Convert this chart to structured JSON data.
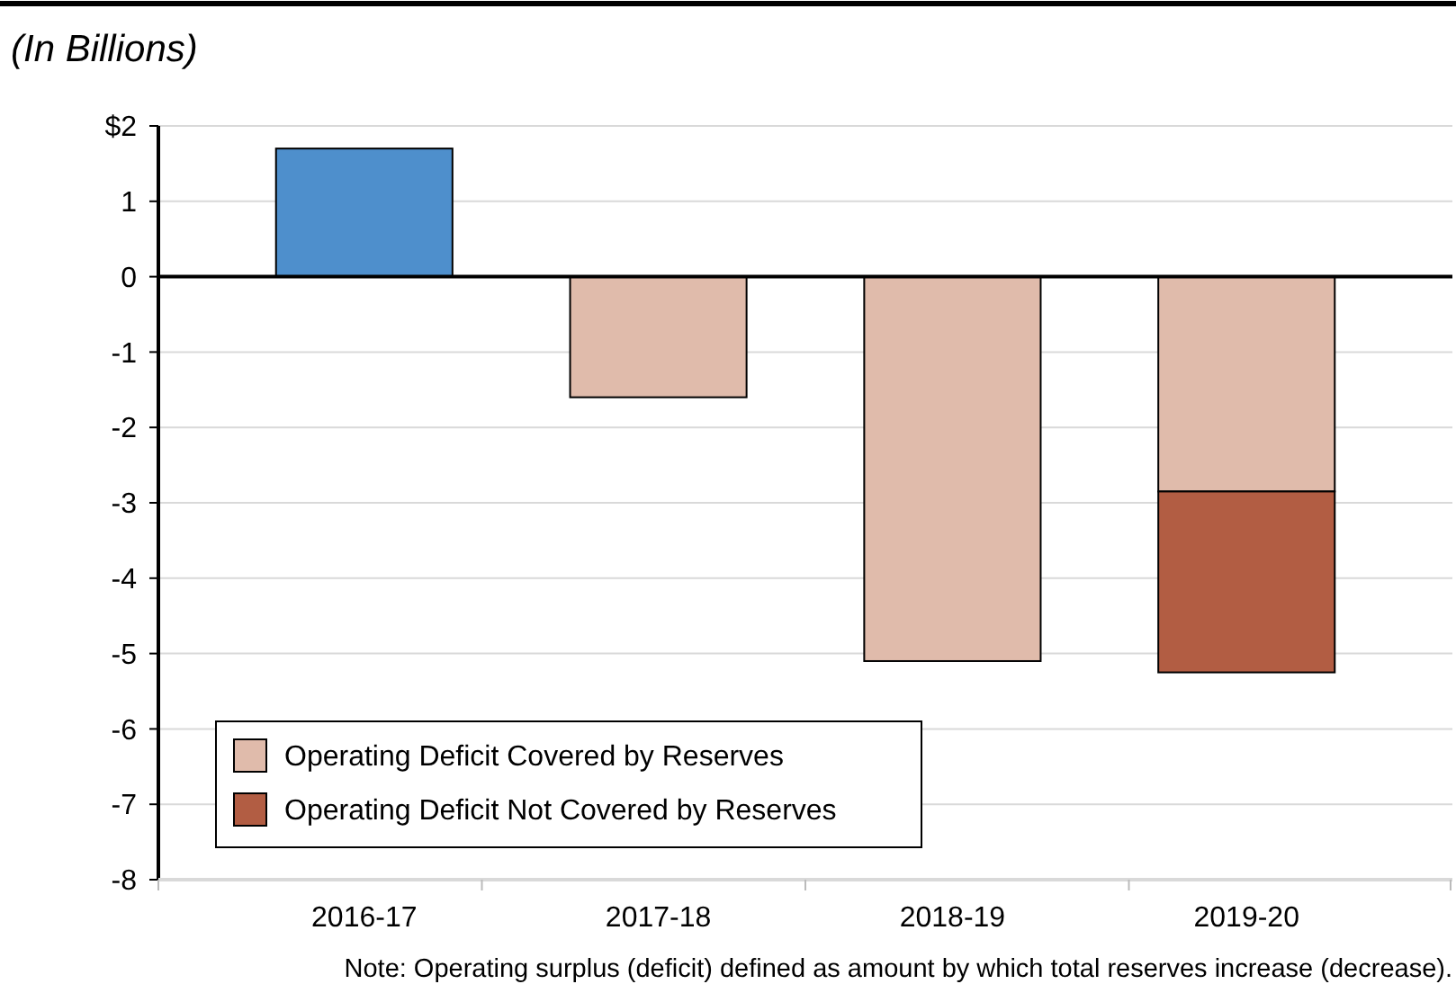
{
  "chart_data": {
    "type": "bar",
    "title": "(In Billions)",
    "categories": [
      "2016-17",
      "2017-18",
      "2018-19",
      "2019-20"
    ],
    "stacked": true,
    "series": [
      {
        "color": "#4e8fcc",
        "values": [
          1.7,
          null,
          null,
          null
        ]
      },
      {
        "name": "Operating Deficit Covered by Reserves",
        "color": "#e0bbab",
        "values": [
          null,
          -1.6,
          -5.1,
          -2.85
        ]
      },
      {
        "name": "Operating Deficit Not Covered by Reserves",
        "color": "#b25d43",
        "values": [
          null,
          null,
          null,
          -2.4
        ]
      }
    ],
    "ylim": [
      -8,
      2
    ],
    "yticks": [
      {
        "value": 2,
        "label": "$2"
      },
      1,
      0,
      -1,
      -2,
      -3,
      -4,
      -5,
      -6,
      -7,
      -8
    ],
    "grid": "y",
    "legend": "bottom left",
    "annotations": [
      "Note: Operating surplus (deficit) defined as amount by which total reserves increase (decrease)."
    ]
  }
}
